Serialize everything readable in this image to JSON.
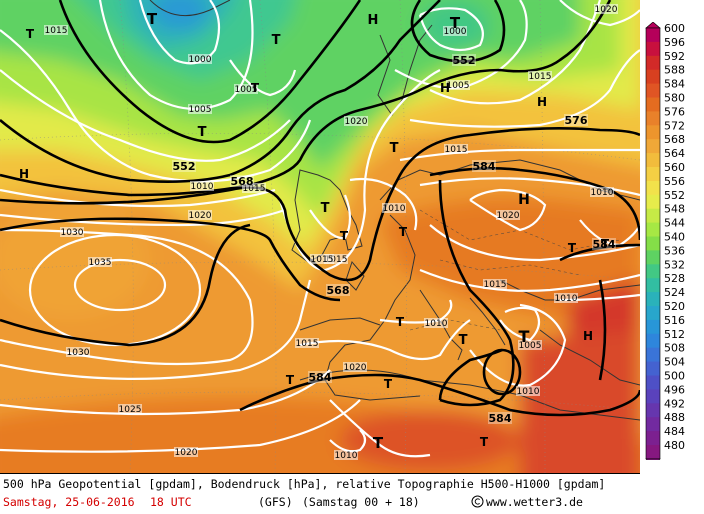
{
  "footer": {
    "line1": "500 hPa Geopotential [gpdam], Bodendruck [hPa], relative Topographie H500-H1000 [gpdam]",
    "date": "Samstag, 25-06-2016",
    "time": "18 UTC",
    "model": "(GFS)",
    "run": "(Samstag 00 + 18)",
    "site": "www.wetter3.de"
  },
  "legend": {
    "values": [
      "600",
      "596",
      "592",
      "588",
      "584",
      "580",
      "576",
      "572",
      "568",
      "564",
      "560",
      "556",
      "552",
      "548",
      "544",
      "540",
      "536",
      "532",
      "528",
      "524",
      "520",
      "516",
      "512",
      "508",
      "504",
      "500",
      "496",
      "492",
      "488",
      "484",
      "480"
    ],
    "colors": [
      "#b5005a",
      "#c8103e",
      "#d22a28",
      "#d84020",
      "#e05524",
      "#e46c20",
      "#e9812a",
      "#ed952d",
      "#f0a838",
      "#f2bc3c",
      "#f4cf44",
      "#f2e24b",
      "#e6ec4b",
      "#c6ea46",
      "#a6e844",
      "#84de48",
      "#5ed262",
      "#42c884",
      "#32bea2",
      "#2ab2ba",
      "#28a6cc",
      "#2896d8",
      "#2e86dc",
      "#3a74d8",
      "#4462d0",
      "#4e50c6",
      "#5a42bc",
      "#6636ae",
      "#722aa0",
      "#7c2090",
      "#861880"
    ]
  },
  "map": {
    "pressure_centers": [
      {
        "label": "T",
        "kind": "low"
      },
      {
        "label": "H",
        "kind": "high"
      },
      {
        "label": "T",
        "kind": "low"
      },
      {
        "label": "T",
        "kind": "low"
      },
      {
        "label": "T",
        "kind": "low"
      },
      {
        "label": "T",
        "kind": "low"
      },
      {
        "label": "H",
        "kind": "high"
      },
      {
        "label": "H",
        "kind": "high"
      },
      {
        "label": "T",
        "kind": "low"
      },
      {
        "label": "H",
        "kind": "high"
      },
      {
        "label": "T",
        "kind": "low"
      },
      {
        "label": "T",
        "kind": "low"
      },
      {
        "label": "H",
        "kind": "high"
      },
      {
        "label": "T",
        "kind": "low"
      },
      {
        "label": "T",
        "kind": "low"
      },
      {
        "label": "T",
        "kind": "low"
      },
      {
        "label": "T",
        "kind": "low"
      },
      {
        "label": "T",
        "kind": "low"
      },
      {
        "label": "T",
        "kind": "low"
      },
      {
        "label": "T",
        "kind": "low"
      },
      {
        "label": "H",
        "kind": "high"
      },
      {
        "label": "T",
        "kind": "low"
      },
      {
        "label": "T",
        "kind": "low"
      },
      {
        "label": "T",
        "kind": "low"
      },
      {
        "label": "T",
        "kind": "low"
      }
    ],
    "pressure_labels": [
      "1015",
      "1000",
      "1000",
      "1005",
      "1010",
      "1020",
      "1015",
      "1020",
      "1030",
      "1035",
      "1015",
      "1010",
      "1030",
      "1025",
      "1020",
      "1020",
      "1015",
      "1010",
      "1015",
      "1005",
      "1015",
      "1020",
      "1010",
      "1010",
      "1005",
      "1010",
      "1010",
      "1015",
      "1015",
      "1005",
      "1020"
    ],
    "geopotential_labels": [
      "552",
      "552",
      "568",
      "576",
      "584",
      "568",
      "584",
      "584",
      "584"
    ]
  }
}
